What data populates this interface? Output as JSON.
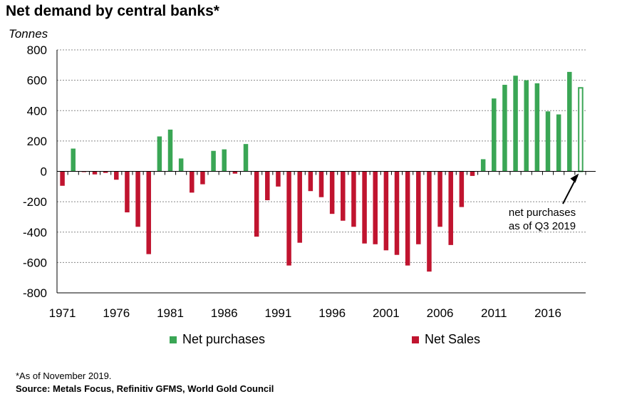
{
  "title": "Net demand by central banks*",
  "unit_label": "Tonnes",
  "legend": {
    "purchases_label": "Net purchases",
    "sales_label": "Net Sales"
  },
  "annotation": {
    "line1": "net purchases",
    "line2": "as of Q3 2019"
  },
  "footnote": "*As of November 2019.",
  "source": "Source: Metals Focus, Refinitiv GFMS, World Gold Council",
  "colors": {
    "purchases": "#3aa655",
    "sales": "#c0142f",
    "grid": "#888888"
  },
  "chart_data": {
    "type": "bar",
    "xlabel": "",
    "ylabel": "Tonnes",
    "ylim": [
      -800,
      800
    ],
    "yticks": [
      800,
      600,
      400,
      200,
      0,
      -200,
      -400,
      -600,
      -800
    ],
    "xtick_labels": [
      "1971",
      "1976",
      "1981",
      "1986",
      "1991",
      "1996",
      "2001",
      "2006",
      "2011",
      "2016"
    ],
    "grid": true,
    "categories": [
      1971,
      1972,
      1973,
      1974,
      1975,
      1976,
      1977,
      1978,
      1979,
      1980,
      1981,
      1982,
      1983,
      1984,
      1985,
      1986,
      1987,
      1988,
      1989,
      1990,
      1991,
      1992,
      1993,
      1994,
      1995,
      1996,
      1997,
      1998,
      1999,
      2000,
      2001,
      2002,
      2003,
      2004,
      2005,
      2006,
      2007,
      2008,
      2009,
      2010,
      2011,
      2012,
      2013,
      2014,
      2015,
      2016,
      2017,
      2018,
      2019
    ],
    "series": [
      {
        "name": "Net purchases / Net Sales",
        "values": [
          -95,
          150,
          -5,
          -20,
          -10,
          -55,
          -270,
          -365,
          -545,
          230,
          275,
          85,
          -140,
          -85,
          135,
          145,
          -15,
          180,
          -430,
          -190,
          -100,
          -620,
          -470,
          -130,
          -170,
          -280,
          -325,
          -365,
          -475,
          -480,
          -520,
          -550,
          -620,
          -480,
          -660,
          -365,
          -485,
          -235,
          -30,
          80,
          480,
          570,
          630,
          600,
          580,
          395,
          375,
          655,
          550
        ],
        "last_is_partial": true
      }
    ]
  }
}
